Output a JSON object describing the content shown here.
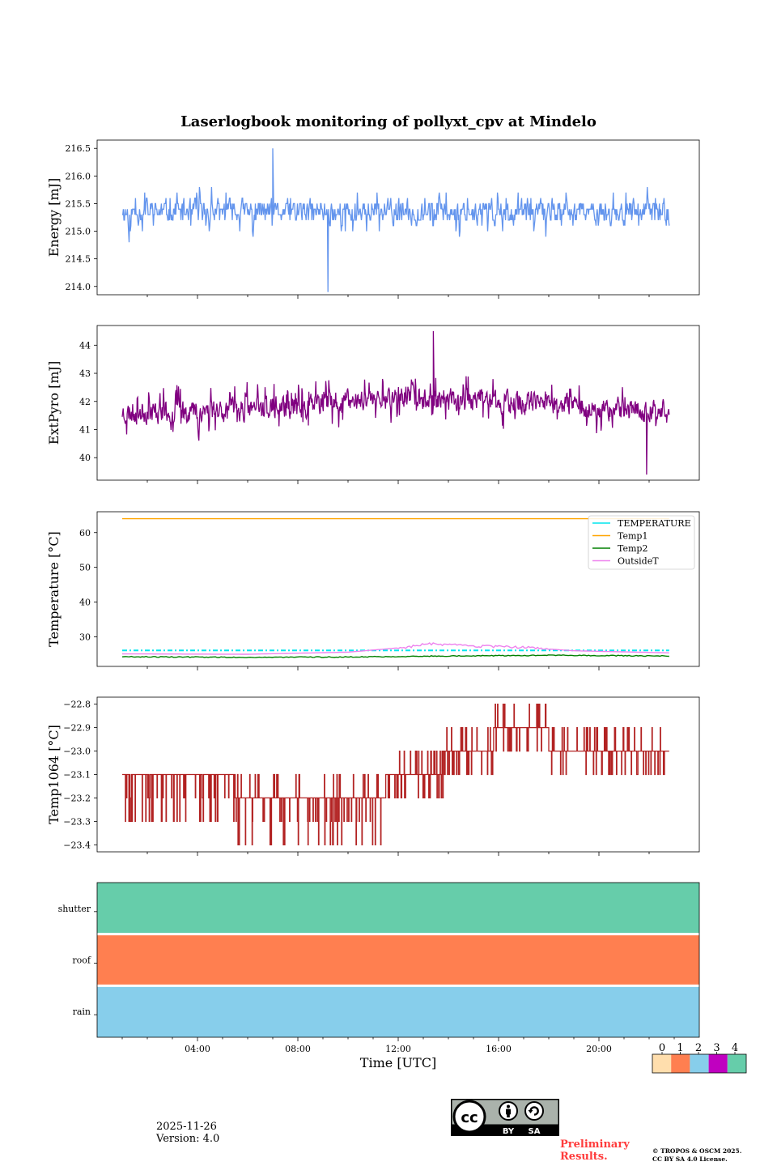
{
  "figure": {
    "title": "Laserlogbook monitoring of pollyxt_cpv at Mindelo",
    "date": "2025-11-26",
    "version": "Version: 4.0",
    "preliminary_line1": "Preliminary",
    "preliminary_line2": "Results.",
    "copyright_line1": "© TROPOS & OSCM 2025.",
    "copyright_line2": "CC BY SA 4.0 License.",
    "cc_badge": {
      "symbol": "cc",
      "by": "BY",
      "sa": "SA",
      "icon_by": "person-icon",
      "icon_sa": "share-alike-icon"
    }
  },
  "chart_data": [
    {
      "id": "energy",
      "type": "line",
      "ylabel": "Energy [mJ]",
      "ylim": [
        213.85,
        216.65
      ],
      "yticks": [
        214.0,
        214.5,
        215.0,
        215.5,
        216.0,
        216.5
      ],
      "tick_decimals": 1,
      "x_hours": [
        1.0,
        22.8
      ],
      "color": "#6495ed",
      "series": [
        {
          "name": "Energy",
          "noise": {
            "seed": 11,
            "base": 215.35,
            "drift": [],
            "amp": 0.28,
            "spike": 0.6,
            "n": 950,
            "quant": 0.1
          }
        }
      ],
      "peak": {
        "hour": 7.0,
        "value": 216.5
      },
      "trough": {
        "hour": 9.2,
        "value": 213.9
      }
    },
    {
      "id": "extpyro",
      "type": "line",
      "ylabel": "ExtPyro [mJ]",
      "ylim": [
        39.2,
        44.7
      ],
      "yticks": [
        40,
        41,
        42,
        43,
        44
      ],
      "tick_decimals": 0,
      "x_hours": [
        1.0,
        22.8
      ],
      "color": "#800080",
      "series": [
        {
          "name": "ExtPyro",
          "noise": {
            "seed": 23,
            "base": 41.7,
            "drift": [
              [
                1,
                41.6
              ],
              [
                8,
                41.8
              ],
              [
                12,
                42.2
              ],
              [
                16,
                42.0
              ],
              [
                22.8,
                41.6
              ]
            ],
            "amp": 0.55,
            "spike": 1.3,
            "n": 1100,
            "quant": 0
          }
        }
      ],
      "peak": {
        "hour": 13.4,
        "value": 44.5
      },
      "trough": {
        "hour": 21.9,
        "value": 39.4
      }
    },
    {
      "id": "temperature",
      "type": "line",
      "ylabel": "Temperature [°C]",
      "ylim": [
        21.5,
        66.0
      ],
      "yticks": [
        30,
        40,
        50,
        60
      ],
      "tick_decimals": 0,
      "x_hours": [
        1.0,
        22.8
      ],
      "legend": {
        "position": "top-right",
        "entries": [
          "TEMPERATURE",
          "Temp1",
          "Temp2",
          "OutsideT"
        ]
      },
      "series": [
        {
          "name": "TEMPERATURE",
          "color": "#00e5ee",
          "style": "dashdot",
          "points": [
            [
              1,
              26.1
            ],
            [
              22.8,
              26.1
            ]
          ]
        },
        {
          "name": "Temp1",
          "color": "#ffa500",
          "style": "solid",
          "points": [
            [
              1,
              64.0
            ],
            [
              22.8,
              64.0
            ]
          ]
        },
        {
          "name": "Temp2",
          "color": "#008000",
          "style": "solid",
          "points": [
            [
              1,
              24.3
            ],
            [
              6,
              24.1
            ],
            [
              10,
              24.2
            ],
            [
              14,
              24.5
            ],
            [
              18,
              24.7
            ],
            [
              22.8,
              24.5
            ]
          ]
        },
        {
          "name": "OutsideT",
          "color": "#ee82ee",
          "style": "solid",
          "points": [
            [
              1,
              25.1
            ],
            [
              6,
              25.0
            ],
            [
              10,
              25.6
            ],
            [
              12.3,
              27.0
            ],
            [
              13.2,
              28.0
            ],
            [
              15,
              27.3
            ],
            [
              17,
              27.0
            ],
            [
              19,
              26.0
            ],
            [
              22.8,
              25.4
            ]
          ]
        }
      ]
    },
    {
      "id": "temp1064",
      "type": "step",
      "ylabel": "Temp1064 [°C]",
      "ylim": [
        -23.43,
        -22.77
      ],
      "yticks": [
        -22.8,
        -22.9,
        -23.0,
        -23.1,
        -23.2,
        -23.3,
        -23.4
      ],
      "tick_decimals": 1,
      "x_hours": [
        1.0,
        22.8
      ],
      "color": "#b22222",
      "levels": [
        {
          "from": 1.0,
          "to": 5.5,
          "base": -23.1,
          "flips": [
            -23.2,
            -23.3
          ]
        },
        {
          "from": 5.5,
          "to": 11.5,
          "base": -23.2,
          "flips": [
            -23.3,
            -23.4,
            -23.1
          ]
        },
        {
          "from": 11.5,
          "to": 13.8,
          "base": -23.1,
          "flips": [
            -23.2,
            -23.0
          ]
        },
        {
          "from": 13.8,
          "to": 15.8,
          "base": -23.0,
          "flips": [
            -22.9,
            -23.1
          ]
        },
        {
          "from": 15.8,
          "to": 18.0,
          "base": -22.9,
          "flips": [
            -22.8,
            -23.0
          ]
        },
        {
          "from": 18.0,
          "to": 22.8,
          "base": -23.0,
          "flips": [
            -22.9,
            -23.1
          ]
        }
      ]
    },
    {
      "id": "status",
      "type": "heatmap",
      "rows": [
        {
          "label": "shutter",
          "value": 4
        },
        {
          "label": "roof",
          "value": 1
        },
        {
          "label": "rain",
          "value": 2
        }
      ],
      "xlabel": "Time [UTC]",
      "xlim_hours": [
        0,
        24
      ],
      "xticks": [
        {
          "hour": 4,
          "label": "04:00"
        },
        {
          "hour": 8,
          "label": "08:00"
        },
        {
          "hour": 12,
          "label": "12:00"
        },
        {
          "hour": 16,
          "label": "16:00"
        },
        {
          "hour": 20,
          "label": "20:00"
        }
      ],
      "colorbar": {
        "ticks": [
          "0",
          "1",
          "2",
          "3",
          "4"
        ],
        "colors": [
          "#ffdead",
          "#ff7f50",
          "#87ceeb",
          "#c000c0",
          "#66cdaa"
        ]
      }
    }
  ]
}
